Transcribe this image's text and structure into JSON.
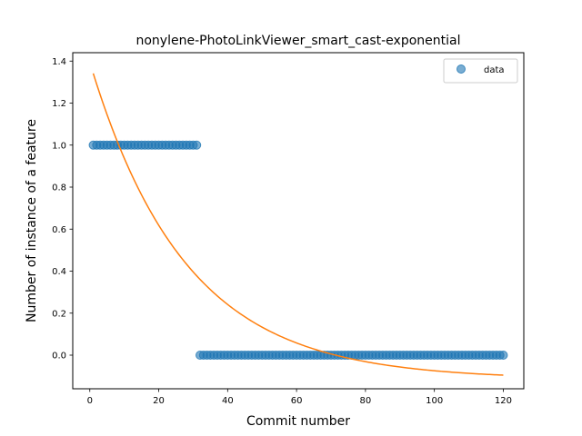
{
  "chart_data": {
    "type": "scatter",
    "title": "nonylene-PhotoLinkViewer_smart_cast-exponential",
    "xlabel": "Commit number",
    "ylabel": "Number of instance of a feature",
    "xlim": [
      -4.95,
      125.95
    ],
    "ylim": [
      -0.16,
      1.44
    ],
    "x_ticks": [
      0,
      20,
      40,
      60,
      80,
      100,
      120
    ],
    "y_ticks": [
      0.0,
      0.2,
      0.4,
      0.6,
      0.8,
      1.0,
      1.2,
      1.4
    ],
    "legend": {
      "placement": "upper right",
      "entries": [
        "data"
      ]
    },
    "grid": false,
    "series": [
      {
        "name": "data",
        "kind": "scatter",
        "color": "#1f77b4",
        "segments": [
          {
            "x_from": 1,
            "x_to": 31,
            "step": 1,
            "y": 1.0
          },
          {
            "x_from": 32,
            "x_to": 120,
            "step": 1,
            "y": 0.0
          }
        ]
      },
      {
        "kind": "line",
        "color": "#ff7f0e",
        "model": "exponential",
        "params": {
          "a": 1.51,
          "b": 0.0361,
          "c": -0.115
        },
        "x_range": [
          1,
          120
        ]
      }
    ]
  }
}
